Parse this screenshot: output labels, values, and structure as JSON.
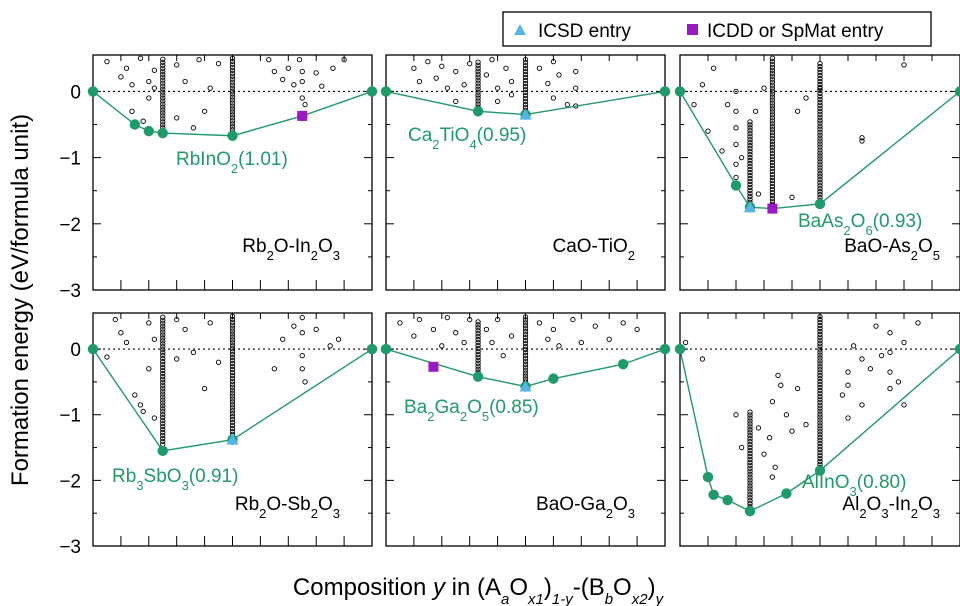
{
  "chart_data": {
    "type": "scatter",
    "ylabel": "Formation energy (eV/formula unit)",
    "xlabel_parts": [
      "Composition ",
      "y",
      " in (A",
      "a",
      "O",
      "x1",
      ")",
      "1-y",
      "-(B",
      "b",
      "O",
      "x2",
      ")",
      "y"
    ],
    "ylim": [
      -3,
      0.55
    ],
    "yticks": [
      0,
      -1,
      -2,
      -3
    ],
    "xlim": [
      0,
      1
    ],
    "grid": false,
    "legend_position": "top-right",
    "legend": [
      {
        "label": "ICSD entry",
        "marker": "triangle",
        "color": "#56b4e9"
      },
      {
        "label": "ICDD or SpMat entry",
        "marker": "square",
        "color": "#9b19c4"
      }
    ],
    "colors": {
      "hull": "#1f9a6a",
      "icsd": "#56b4e9",
      "icdd": "#9b19c4",
      "candidate": "#000000"
    },
    "panels": [
      {
        "system": [
          {
            "t": "Rb"
          },
          {
            "t": "2",
            "sub": true
          },
          {
            "t": "O-In"
          },
          {
            "t": "2",
            "sub": true
          },
          {
            "t": "O"
          },
          {
            "t": "3",
            "sub": true
          }
        ],
        "compound": [
          {
            "t": "RbInO"
          },
          {
            "t": "2",
            "sub": true
          },
          {
            "t": "(1.01)"
          }
        ],
        "hull": [
          [
            0,
            0
          ],
          [
            0.15,
            -0.5
          ],
          [
            0.2,
            -0.6
          ],
          [
            0.25,
            -0.63
          ],
          [
            0.5,
            -0.67
          ],
          [
            0.75,
            -0.37
          ],
          [
            1,
            0
          ]
        ],
        "icsd": [],
        "icdd": [
          [
            0.75,
            -0.37
          ]
        ],
        "columns": [
          [
            0.25,
            -0.55,
            0.5
          ],
          [
            0.5,
            -0.67,
            0.52
          ]
        ],
        "scatter": [
          [
            0.05,
            0.45
          ],
          [
            0.1,
            0.22
          ],
          [
            0.12,
            0.35
          ],
          [
            0.14,
            0.1
          ],
          [
            0.17,
            0.5
          ],
          [
            0.2,
            0.15
          ],
          [
            0.22,
            0.32
          ],
          [
            0.14,
            -0.3
          ],
          [
            0.18,
            -0.45
          ],
          [
            0.2,
            -0.1
          ],
          [
            0.22,
            0.05
          ],
          [
            0.3,
            0.4
          ],
          [
            0.3,
            -0.4
          ],
          [
            0.33,
            0.15
          ],
          [
            0.36,
            -0.55
          ],
          [
            0.38,
            0.48
          ],
          [
            0.4,
            -0.3
          ],
          [
            0.42,
            0.05
          ],
          [
            0.45,
            0.42
          ],
          [
            0.63,
            0.48
          ],
          [
            0.65,
            0.3
          ],
          [
            0.68,
            0.18
          ],
          [
            0.7,
            0.35
          ],
          [
            0.72,
            0.1
          ],
          [
            0.74,
            0.48
          ],
          [
            0.75,
            0.3
          ],
          [
            0.75,
            0.15
          ],
          [
            0.75,
            -0.1
          ],
          [
            0.76,
            -0.2
          ],
          [
            0.8,
            0.28
          ],
          [
            0.82,
            0.08
          ],
          [
            0.86,
            0.35
          ],
          [
            0.9,
            0.48
          ]
        ]
      },
      {
        "system": [
          {
            "t": "CaO-TiO"
          },
          {
            "t": "2",
            "sub": true
          }
        ],
        "compound": [
          {
            "t": "Ca"
          },
          {
            "t": "2",
            "sub": true
          },
          {
            "t": "TiO"
          },
          {
            "t": "4",
            "sub": true
          },
          {
            "t": "(0.95)"
          }
        ],
        "hull": [
          [
            0,
            0
          ],
          [
            0.33,
            -0.3
          ],
          [
            0.5,
            -0.35
          ],
          [
            1,
            0
          ]
        ],
        "icsd": [
          [
            0.5,
            -0.35
          ]
        ],
        "icdd": [],
        "columns": [
          [
            0.33,
            -0.28,
            0.45
          ],
          [
            0.5,
            -0.33,
            0.52
          ]
        ],
        "scatter": [
          [
            0.1,
            0.35
          ],
          [
            0.12,
            0.15
          ],
          [
            0.15,
            0.45
          ],
          [
            0.18,
            0.2
          ],
          [
            0.2,
            0.38
          ],
          [
            0.22,
            0.05
          ],
          [
            0.25,
            0.3
          ],
          [
            0.25,
            -0.15
          ],
          [
            0.28,
            0.1
          ],
          [
            0.3,
            0.42
          ],
          [
            0.36,
            0.25
          ],
          [
            0.38,
            0.48
          ],
          [
            0.4,
            0.05
          ],
          [
            0.4,
            -0.15
          ],
          [
            0.43,
            0.35
          ],
          [
            0.45,
            -0.05
          ],
          [
            0.45,
            0.15
          ],
          [
            0.55,
            0.35
          ],
          [
            0.58,
            0.12
          ],
          [
            0.6,
            -0.1
          ],
          [
            0.6,
            0.45
          ],
          [
            0.62,
            0.25
          ],
          [
            0.65,
            -0.2
          ],
          [
            0.68,
            0.05
          ],
          [
            0.68,
            0.3
          ],
          [
            0.68,
            -0.22
          ]
        ]
      },
      {
        "system": [
          {
            "t": "BaO-As"
          },
          {
            "t": "2",
            "sub": true
          },
          {
            "t": "O"
          },
          {
            "t": "5",
            "sub": true
          }
        ],
        "compound": [
          {
            "t": "BaAs"
          },
          {
            "t": "2",
            "sub": true
          },
          {
            "t": "O"
          },
          {
            "t": "6",
            "sub": true
          },
          {
            "t": "(0.93)"
          }
        ],
        "hull": [
          [
            0,
            0
          ],
          [
            0.2,
            -1.42
          ],
          [
            0.25,
            -1.75
          ],
          [
            0.33,
            -1.77
          ],
          [
            0.5,
            -1.7
          ],
          [
            1,
            0
          ]
        ],
        "icsd": [
          [
            0.25,
            -1.75
          ]
        ],
        "icdd": [
          [
            0.33,
            -1.77
          ]
        ],
        "columns": [
          [
            0.25,
            -1.72,
            -0.45
          ],
          [
            0.33,
            -1.75,
            0.52
          ],
          [
            0.5,
            -1.65,
            0.42
          ]
        ],
        "scatter": [
          [
            0.05,
            -0.2
          ],
          [
            0.08,
            0.1
          ],
          [
            0.1,
            -0.6
          ],
          [
            0.12,
            0.35
          ],
          [
            0.15,
            -0.9
          ],
          [
            0.17,
            -0.2
          ],
          [
            0.2,
            -1.3
          ],
          [
            0.2,
            -1.1
          ],
          [
            0.2,
            -0.8
          ],
          [
            0.2,
            -0.55
          ],
          [
            0.2,
            -0.3
          ],
          [
            0.2,
            0.0
          ],
          [
            0.22,
            -1.0
          ],
          [
            0.27,
            -0.3
          ],
          [
            0.28,
            -1.55
          ],
          [
            0.3,
            0.05
          ],
          [
            0.4,
            -1.6
          ],
          [
            0.42,
            -0.3
          ],
          [
            0.45,
            -0.1
          ],
          [
            0.5,
            0.05
          ],
          [
            0.65,
            -0.7
          ],
          [
            0.65,
            -0.75
          ],
          [
            0.8,
            0.4
          ]
        ]
      },
      {
        "system": [
          {
            "t": "Rb"
          },
          {
            "t": "2",
            "sub": true
          },
          {
            "t": "O-Sb"
          },
          {
            "t": "2",
            "sub": true
          },
          {
            "t": "O"
          },
          {
            "t": "3",
            "sub": true
          }
        ],
        "compound": [
          {
            "t": "Rb"
          },
          {
            "t": "3",
            "sub": true
          },
          {
            "t": "SbO"
          },
          {
            "t": "3",
            "sub": true
          },
          {
            "t": "(0.91)"
          }
        ],
        "hull": [
          [
            0,
            0
          ],
          [
            0.25,
            -1.55
          ],
          [
            0.5,
            -1.38
          ],
          [
            1,
            0
          ]
        ],
        "icsd": [
          [
            0.5,
            -1.38
          ]
        ],
        "icdd": [],
        "columns": [
          [
            0.25,
            -1.45,
            0.5
          ],
          [
            0.5,
            -1.3,
            0.52
          ]
        ],
        "scatter": [
          [
            0.05,
            -0.12
          ],
          [
            0.08,
            0.45
          ],
          [
            0.1,
            0.25
          ],
          [
            0.12,
            0.1
          ],
          [
            0.15,
            -0.7
          ],
          [
            0.17,
            -0.85
          ],
          [
            0.18,
            -0.95
          ],
          [
            0.2,
            0.4
          ],
          [
            0.2,
            -0.3
          ],
          [
            0.22,
            -1.05
          ],
          [
            0.22,
            0.15
          ],
          [
            0.3,
            0.45
          ],
          [
            0.3,
            -0.15
          ],
          [
            0.33,
            0.3
          ],
          [
            0.36,
            -0.05
          ],
          [
            0.4,
            -0.6
          ],
          [
            0.42,
            0.4
          ],
          [
            0.45,
            -0.2
          ],
          [
            0.65,
            -0.3
          ],
          [
            0.68,
            0.15
          ],
          [
            0.72,
            0.35
          ],
          [
            0.75,
            0.48
          ],
          [
            0.75,
            0.25
          ],
          [
            0.75,
            -0.1
          ],
          [
            0.75,
            -0.3
          ],
          [
            0.76,
            -0.5
          ],
          [
            0.8,
            0.3
          ],
          [
            0.85,
            0.05
          ],
          [
            0.88,
            0.15
          ]
        ]
      },
      {
        "system": [
          {
            "t": "BaO-Ga"
          },
          {
            "t": "2",
            "sub": true
          },
          {
            "t": "O"
          },
          {
            "t": "3",
            "sub": true
          }
        ],
        "compound": [
          {
            "t": "Ba"
          },
          {
            "t": "2",
            "sub": true
          },
          {
            "t": "Ga"
          },
          {
            "t": "2",
            "sub": true
          },
          {
            "t": "O"
          },
          {
            "t": "5",
            "sub": true
          },
          {
            "t": "(0.85)"
          }
        ],
        "hull": [
          [
            0,
            0
          ],
          [
            0.33,
            -0.42
          ],
          [
            0.5,
            -0.57
          ],
          [
            0.6,
            -0.45
          ],
          [
            0.85,
            -0.23
          ],
          [
            1,
            0
          ]
        ],
        "icsd": [
          [
            0.5,
            -0.57
          ]
        ],
        "icdd": [
          [
            0.17,
            -0.27
          ]
        ],
        "columns": [
          [
            0.33,
            -0.35,
            0.45
          ],
          [
            0.5,
            -0.5,
            0.52
          ]
        ],
        "scatter": [
          [
            0.05,
            0.4
          ],
          [
            0.1,
            0.2
          ],
          [
            0.12,
            0.45
          ],
          [
            0.17,
            0.3
          ],
          [
            0.2,
            0.05
          ],
          [
            0.22,
            0.48
          ],
          [
            0.25,
            0.25
          ],
          [
            0.28,
            0.1
          ],
          [
            0.3,
            0.45
          ],
          [
            0.36,
            0.3
          ],
          [
            0.38,
            0.1
          ],
          [
            0.4,
            0.45
          ],
          [
            0.42,
            -0.1
          ],
          [
            0.45,
            0.2
          ],
          [
            0.55,
            0.4
          ],
          [
            0.58,
            0.15
          ],
          [
            0.6,
            0.3
          ],
          [
            0.62,
            0.05
          ],
          [
            0.67,
            0.45
          ],
          [
            0.7,
            0.1
          ],
          [
            0.75,
            0.35
          ],
          [
            0.8,
            0.15
          ],
          [
            0.85,
            0.4
          ],
          [
            0.9,
            0.3
          ]
        ]
      },
      {
        "system": [
          {
            "t": "Al"
          },
          {
            "t": "2",
            "sub": true
          },
          {
            "t": "O"
          },
          {
            "t": "3",
            "sub": true
          },
          {
            "t": "-In"
          },
          {
            "t": "2",
            "sub": true
          },
          {
            "t": "O"
          },
          {
            "t": "3",
            "sub": true
          }
        ],
        "compound": [
          {
            "t": "AlInO"
          },
          {
            "t": "3",
            "sub": true
          },
          {
            "t": "(0.80)"
          }
        ],
        "hull": [
          [
            0,
            0
          ],
          [
            0.1,
            -1.95
          ],
          [
            0.12,
            -2.22
          ],
          [
            0.17,
            -2.3
          ],
          [
            0.25,
            -2.47
          ],
          [
            0.38,
            -2.2
          ],
          [
            0.5,
            -1.85
          ],
          [
            1,
            0
          ]
        ],
        "icsd": [],
        "icdd": [],
        "columns": [
          [
            0.25,
            -2.4,
            -0.95
          ],
          [
            0.5,
            -1.8,
            0.52
          ]
        ],
        "scatter": [
          [
            0.02,
            0.1
          ],
          [
            0.08,
            -0.15
          ],
          [
            0.2,
            -1.0
          ],
          [
            0.22,
            -1.5
          ],
          [
            0.28,
            -1.2
          ],
          [
            0.3,
            -1.6
          ],
          [
            0.32,
            -1.35
          ],
          [
            0.33,
            -0.8
          ],
          [
            0.33,
            -1.95
          ],
          [
            0.34,
            -1.8
          ],
          [
            0.35,
            -0.4
          ],
          [
            0.36,
            -0.55
          ],
          [
            0.38,
            -1.0
          ],
          [
            0.4,
            -1.25
          ],
          [
            0.42,
            -0.6
          ],
          [
            0.45,
            -1.15
          ],
          [
            0.58,
            -0.7
          ],
          [
            0.6,
            -0.35
          ],
          [
            0.6,
            -0.55
          ],
          [
            0.6,
            -1.05
          ],
          [
            0.62,
            0.05
          ],
          [
            0.65,
            -0.15
          ],
          [
            0.65,
            -0.85
          ],
          [
            0.68,
            -0.3
          ],
          [
            0.7,
            0.35
          ],
          [
            0.72,
            -0.1
          ],
          [
            0.75,
            0.25
          ],
          [
            0.75,
            -0.05
          ],
          [
            0.75,
            -0.35
          ],
          [
            0.75,
            -0.6
          ],
          [
            0.78,
            -0.5
          ],
          [
            0.8,
            0.1
          ],
          [
            0.8,
            -0.85
          ],
          [
            0.85,
            0.4
          ]
        ]
      }
    ]
  }
}
